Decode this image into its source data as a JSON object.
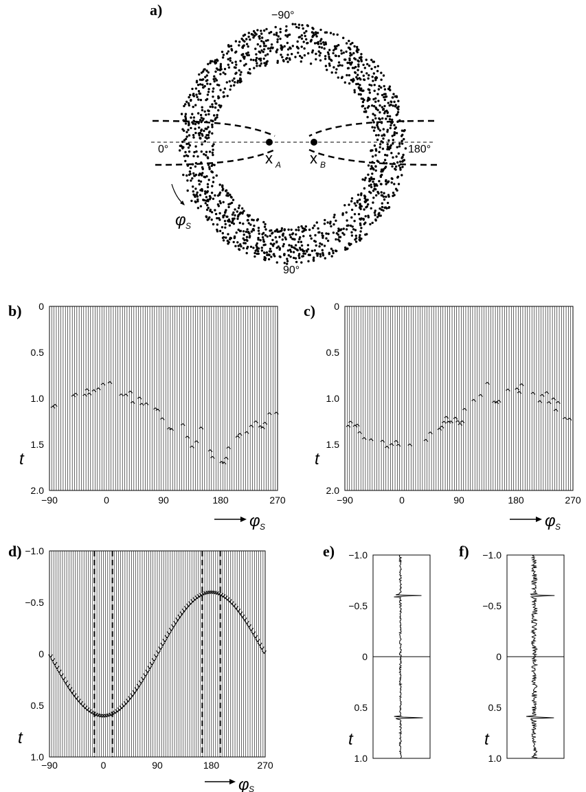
{
  "panels": {
    "a": {
      "label": "a)",
      "angle_top": "−90°",
      "angle_left": "0°",
      "angle_right": "180°",
      "angle_bottom": "90°",
      "point_a": "x",
      "point_a_sub": "A",
      "point_b": "x",
      "point_b_sub": "B",
      "phi": "φ",
      "phi_sub": "S"
    },
    "b": {
      "label": "b)",
      "t_label": "t",
      "phi": "φ",
      "phi_sub": "S"
    },
    "c": {
      "label": "c)",
      "t_label": "t",
      "phi": "φ",
      "phi_sub": "S"
    },
    "d": {
      "label": "d)",
      "t_label": "t",
      "phi": "φ",
      "phi_sub": "S"
    },
    "e": {
      "label": "e)",
      "t_label": "t"
    },
    "f": {
      "label": "f)",
      "t_label": "t"
    }
  },
  "chart_data": [
    {
      "panel": "b",
      "type": "line",
      "x_ticks": [
        "−90",
        "0",
        "90",
        "180",
        "270"
      ],
      "y_ticks": [
        "0",
        "0.5",
        "1.0",
        "1.5",
        "2.0"
      ],
      "xlim": [
        -90,
        270
      ],
      "ylim": [
        0,
        2.0
      ],
      "trace_count": 100,
      "arrival_times": [
        {
          "x": -90,
          "y": 1.05
        },
        {
          "x": -75,
          "y": 1.2
        },
        {
          "x": -60,
          "y": 0.95
        },
        {
          "x": -45,
          "y": 1.05
        },
        {
          "x": -30,
          "y": 0.95
        },
        {
          "x": -15,
          "y": 0.9
        },
        {
          "x": 0,
          "y": 0.85
        },
        {
          "x": 15,
          "y": 1.0
        },
        {
          "x": 30,
          "y": 0.9
        },
        {
          "x": 45,
          "y": 1.05
        },
        {
          "x": 60,
          "y": 1.0
        },
        {
          "x": 75,
          "y": 1.1
        },
        {
          "x": 90,
          "y": 1.2
        },
        {
          "x": 105,
          "y": 1.45
        },
        {
          "x": 120,
          "y": 1.3
        },
        {
          "x": 135,
          "y": 1.5
        },
        {
          "x": 150,
          "y": 1.35
        },
        {
          "x": 165,
          "y": 1.6
        },
        {
          "x": 180,
          "y": 1.7
        },
        {
          "x": 195,
          "y": 1.55
        },
        {
          "x": 210,
          "y": 1.45
        },
        {
          "x": 225,
          "y": 1.4
        },
        {
          "x": 240,
          "y": 1.3
        },
        {
          "x": 255,
          "y": 1.25
        },
        {
          "x": 270,
          "y": 1.2
        }
      ]
    },
    {
      "panel": "c",
      "type": "line",
      "x_ticks": [
        "−90",
        "0",
        "90",
        "180",
        "270"
      ],
      "y_ticks": [
        "0",
        "0.5",
        "1.0",
        "1.5",
        "2.0"
      ],
      "xlim": [
        -90,
        270
      ],
      "ylim": [
        0,
        2.0
      ],
      "trace_count": 100,
      "arrival_times": [
        {
          "x": -90,
          "y": 1.2
        },
        {
          "x": -75,
          "y": 1.3
        },
        {
          "x": -60,
          "y": 1.45
        },
        {
          "x": -45,
          "y": 1.5
        },
        {
          "x": -30,
          "y": 1.4
        },
        {
          "x": -15,
          "y": 1.55
        },
        {
          "x": 0,
          "y": 1.5
        },
        {
          "x": 15,
          "y": 1.45
        },
        {
          "x": 30,
          "y": 1.4
        },
        {
          "x": 45,
          "y": 1.45
        },
        {
          "x": 60,
          "y": 1.35
        },
        {
          "x": 75,
          "y": 1.25
        },
        {
          "x": 90,
          "y": 1.3
        },
        {
          "x": 105,
          "y": 1.1
        },
        {
          "x": 120,
          "y": 1.05
        },
        {
          "x": 135,
          "y": 0.9
        },
        {
          "x": 150,
          "y": 1.0
        },
        {
          "x": 165,
          "y": 0.9
        },
        {
          "x": 180,
          "y": 0.85
        },
        {
          "x": 195,
          "y": 0.95
        },
        {
          "x": 210,
          "y": 1.0
        },
        {
          "x": 225,
          "y": 0.95
        },
        {
          "x": 240,
          "y": 1.05
        },
        {
          "x": 255,
          "y": 1.15
        },
        {
          "x": 270,
          "y": 1.2
        }
      ]
    },
    {
      "panel": "d",
      "type": "line",
      "x_ticks": [
        "−90",
        "0",
        "90",
        "180",
        "270"
      ],
      "y_ticks": [
        "−1.0",
        "−0.5",
        "0",
        "0.5",
        "1.0"
      ],
      "xlim": [
        -90,
        270
      ],
      "ylim": [
        -1.0,
        1.0
      ],
      "trace_count": 100,
      "curve": "sinusoid",
      "curve_amplitude": 0.6,
      "curve_min_at_phi": 0,
      "curve_max_at_phi": 180,
      "dashed_lines_at_phi": [
        -15,
        15,
        165,
        195
      ]
    },
    {
      "panel": "e",
      "type": "line",
      "y_ticks": [
        "−1.0",
        "−0.5",
        "0",
        "0.5",
        "1.0"
      ],
      "ylim": [
        -1.0,
        1.0
      ],
      "pulse_times": [
        -0.6,
        0.6
      ]
    },
    {
      "panel": "f",
      "type": "line",
      "y_ticks": [
        "−1.0",
        "−0.5",
        "0",
        "0.5",
        "1.0"
      ],
      "ylim": [
        -1.0,
        1.0
      ],
      "pulse_times": [
        -0.6,
        0.6
      ]
    }
  ]
}
